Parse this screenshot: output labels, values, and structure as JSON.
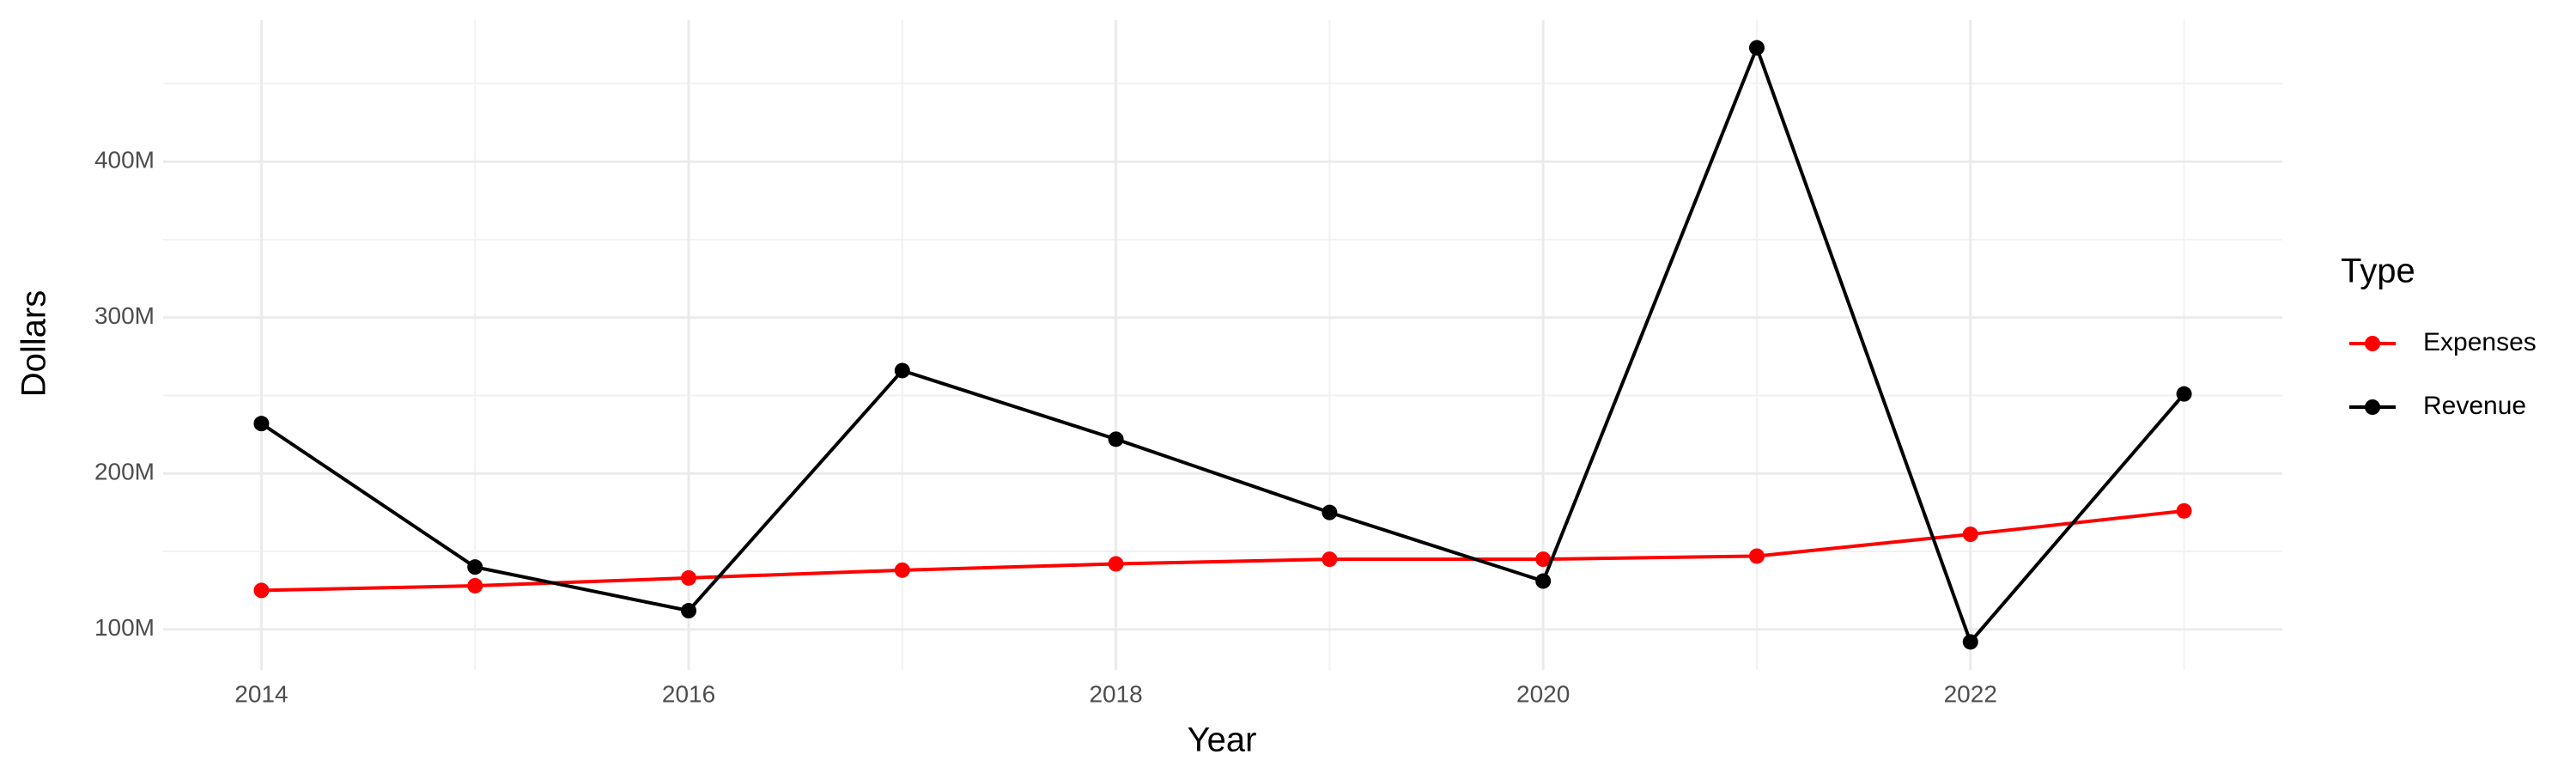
{
  "chart_data": {
    "type": "line",
    "x_label": "Year",
    "y_label": "Dollars",
    "legend_title": "Type",
    "x": [
      2014,
      2015,
      2016,
      2017,
      2018,
      2019,
      2020,
      2021,
      2022,
      2023
    ],
    "series": [
      {
        "name": "Expenses",
        "color": "#ff0000",
        "values": [
          125000000,
          128000000,
          133000000,
          138000000,
          142000000,
          145000000,
          145000000,
          147000000,
          161000000,
          176000000
        ]
      },
      {
        "name": "Revenue",
        "color": "#000000",
        "values": [
          232000000,
          140000000,
          112000000,
          266000000,
          222000000,
          175000000,
          131000000,
          473000000,
          92000000,
          251000000
        ]
      }
    ],
    "xlim": [
      2013.54,
      2023.46
    ],
    "xticks": [
      2014,
      2016,
      2018,
      2020,
      2022
    ],
    "ylim": [
      74000000,
      491000000
    ],
    "yticks": [
      {
        "value": 100000000,
        "label": "100M"
      },
      {
        "value": 200000000,
        "label": "200M"
      },
      {
        "value": 300000000,
        "label": "300M"
      },
      {
        "value": 400000000,
        "label": "400M"
      }
    ],
    "grid": true,
    "legend_position": "right"
  }
}
